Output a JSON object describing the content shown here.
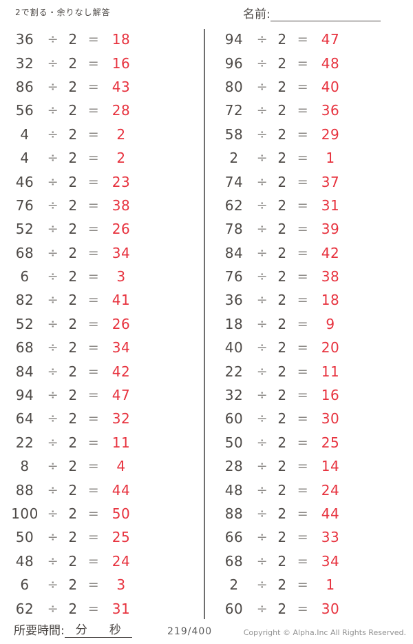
{
  "page": {
    "title": "2で割る・余りなし解答",
    "name_label": "名前:",
    "divide_sign": "÷",
    "divisor": "2",
    "equals_sign": "=",
    "colors": {
      "problem_text": "#4e4a47",
      "operator_gray": "#8b8885",
      "answer_red": "#e7323e",
      "divider_gray": "#6e6e6e"
    }
  },
  "footer": {
    "time_label": "所要時間:",
    "minutes_label": "分",
    "seconds_label": "秒",
    "page_indicator": "219/400",
    "copyright": "Copyright ©  Alpha.Inc All Rights Reserved."
  },
  "problems": {
    "left": [
      {
        "dividend": "36",
        "answer": "18"
      },
      {
        "dividend": "32",
        "answer": "16"
      },
      {
        "dividend": "86",
        "answer": "43"
      },
      {
        "dividend": "56",
        "answer": "28"
      },
      {
        "dividend": "4",
        "answer": "2"
      },
      {
        "dividend": "4",
        "answer": "2"
      },
      {
        "dividend": "46",
        "answer": "23"
      },
      {
        "dividend": "76",
        "answer": "38"
      },
      {
        "dividend": "52",
        "answer": "26"
      },
      {
        "dividend": "68",
        "answer": "34"
      },
      {
        "dividend": "6",
        "answer": "3"
      },
      {
        "dividend": "82",
        "answer": "41"
      },
      {
        "dividend": "52",
        "answer": "26"
      },
      {
        "dividend": "68",
        "answer": "34"
      },
      {
        "dividend": "84",
        "answer": "42"
      },
      {
        "dividend": "94",
        "answer": "47"
      },
      {
        "dividend": "64",
        "answer": "32"
      },
      {
        "dividend": "22",
        "answer": "11"
      },
      {
        "dividend": "8",
        "answer": "4"
      },
      {
        "dividend": "88",
        "answer": "44"
      },
      {
        "dividend": "100",
        "answer": "50"
      },
      {
        "dividend": "50",
        "answer": "25"
      },
      {
        "dividend": "48",
        "answer": "24"
      },
      {
        "dividend": "6",
        "answer": "3"
      },
      {
        "dividend": "62",
        "answer": "31"
      }
    ],
    "right": [
      {
        "dividend": "94",
        "answer": "47"
      },
      {
        "dividend": "96",
        "answer": "48"
      },
      {
        "dividend": "80",
        "answer": "40"
      },
      {
        "dividend": "72",
        "answer": "36"
      },
      {
        "dividend": "58",
        "answer": "29"
      },
      {
        "dividend": "2",
        "answer": "1"
      },
      {
        "dividend": "74",
        "answer": "37"
      },
      {
        "dividend": "62",
        "answer": "31"
      },
      {
        "dividend": "78",
        "answer": "39"
      },
      {
        "dividend": "84",
        "answer": "42"
      },
      {
        "dividend": "76",
        "answer": "38"
      },
      {
        "dividend": "36",
        "answer": "18"
      },
      {
        "dividend": "18",
        "answer": "9"
      },
      {
        "dividend": "40",
        "answer": "20"
      },
      {
        "dividend": "22",
        "answer": "11"
      },
      {
        "dividend": "32",
        "answer": "16"
      },
      {
        "dividend": "60",
        "answer": "30"
      },
      {
        "dividend": "50",
        "answer": "25"
      },
      {
        "dividend": "28",
        "answer": "14"
      },
      {
        "dividend": "48",
        "answer": "24"
      },
      {
        "dividend": "88",
        "answer": "44"
      },
      {
        "dividend": "66",
        "answer": "33"
      },
      {
        "dividend": "68",
        "answer": "34"
      },
      {
        "dividend": "2",
        "answer": "1"
      },
      {
        "dividend": "60",
        "answer": "30"
      }
    ]
  }
}
